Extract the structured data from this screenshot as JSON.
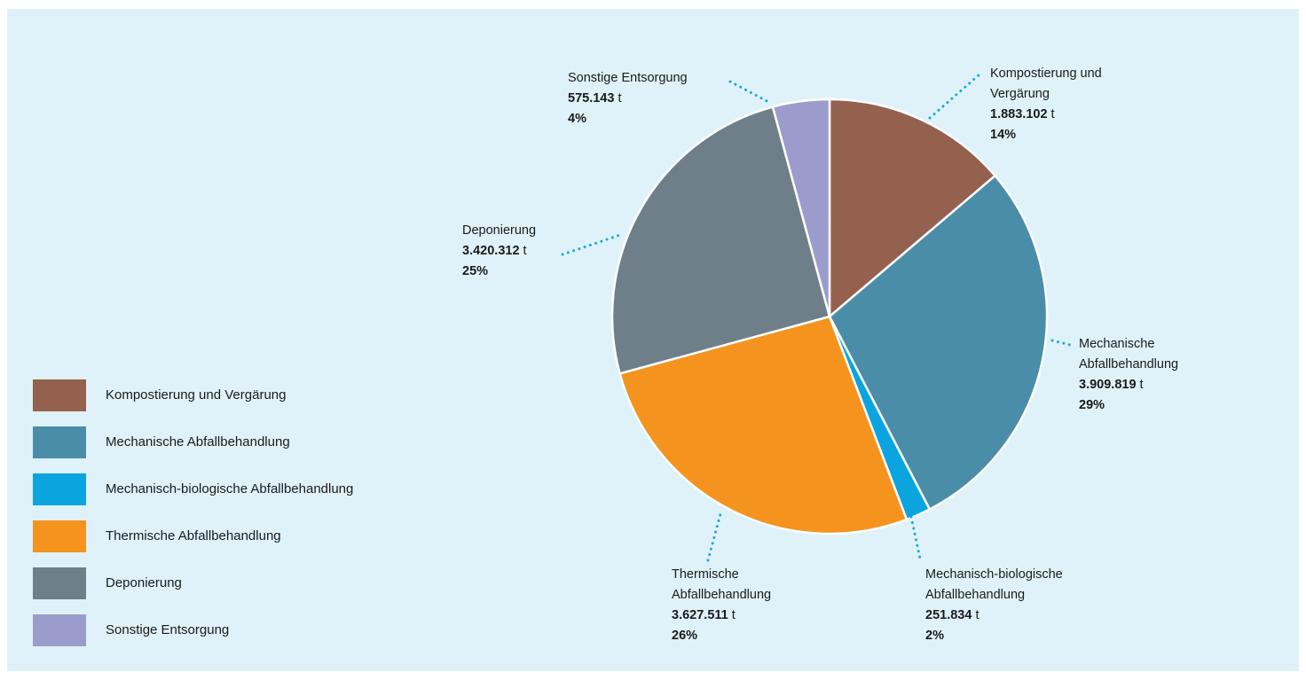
{
  "chart_data": {
    "type": "pie",
    "title": "",
    "unit": "t",
    "legend_position": "bottom-left",
    "slices": [
      {
        "label": "Kompostierung und Vergärung",
        "callout_lines": [
          "Kompostierung und",
          "Vergärung"
        ],
        "value_text": "1.883.102",
        "value": 1883102,
        "percent_text": "14%",
        "color": "#93614e"
      },
      {
        "label": "Mechanische Abfallbehandlung",
        "callout_lines": [
          "Mechanische",
          "Abfallbehandlung"
        ],
        "value_text": "3.909.819",
        "value": 3909819,
        "percent_text": "29%",
        "color": "#4a8da8"
      },
      {
        "label": "Mechanisch-biologische Abfallbehandlung",
        "callout_lines": [
          "Mechanisch-biologische",
          "Abfallbehandlung"
        ],
        "value_text": "251.834",
        "value": 251834,
        "percent_text": "2%",
        "color": "#0aa5de"
      },
      {
        "label": "Thermische Abfallbehandlung",
        "callout_lines": [
          "Thermische",
          "Abfallbehandlung"
        ],
        "value_text": "3.627.511",
        "value": 3627511,
        "percent_text": "26%",
        "color": "#f5931f"
      },
      {
        "label": "Deponierung",
        "callout_lines": [
          "Deponierung"
        ],
        "value_text": "3.420.312",
        "value": 3420312,
        "percent_text": "25%",
        "color": "#6f7f89"
      },
      {
        "label": "Sonstige Entsorgung",
        "callout_lines": [
          "Sonstige Entsorgung"
        ],
        "value_text": "575.143",
        "value": 575143,
        "percent_text": "4%",
        "color": "#9b9ccb"
      }
    ],
    "leader_color": "#1ba8dc"
  }
}
